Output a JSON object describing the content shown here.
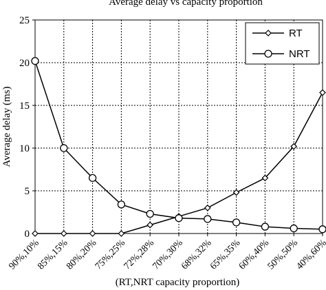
{
  "chart_data": {
    "type": "line",
    "title": "Average delay vs capacity proportion",
    "xlabel": "(RT,NRT capacity proportion)",
    "ylabel": "Average delay (ms)",
    "ylim": [
      0,
      25
    ],
    "yticks": [
      0,
      5,
      10,
      15,
      20,
      25
    ],
    "grid": true,
    "legend_position": "top-right",
    "categories": [
      "90%,10%",
      "85%,15%",
      "80%,20%",
      "75%,25%",
      "72%,28%",
      "70%,30%",
      "68%,32%",
      "65%,35%",
      "60%,40%",
      "50%,50%",
      "40%,60%"
    ],
    "series": [
      {
        "name": "RT",
        "marker": "diamond",
        "values": [
          0,
          0,
          0,
          0,
          1.0,
          2.0,
          3.0,
          4.8,
          6.5,
          10.2,
          16.5
        ]
      },
      {
        "name": "NRT",
        "marker": "circle",
        "values": [
          20.2,
          10.0,
          6.5,
          3.4,
          2.3,
          1.8,
          1.7,
          1.3,
          0.8,
          0.6,
          0.5
        ]
      }
    ]
  }
}
